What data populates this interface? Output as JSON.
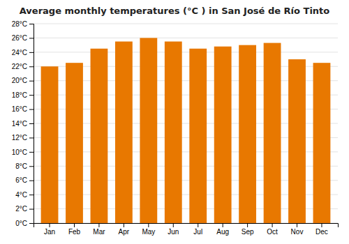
{
  "chart_data": {
    "type": "bar",
    "title": "Average monthly temperatures (°C ) in San José de Río Tinto",
    "categories": [
      "Jan",
      "Feb",
      "Mar",
      "Apr",
      "May",
      "Jun",
      "Jul",
      "Aug",
      "Sep",
      "Oct",
      "Nov",
      "Dec"
    ],
    "values": [
      22.0,
      22.5,
      24.5,
      25.5,
      26.0,
      25.5,
      24.5,
      24.8,
      25.0,
      25.3,
      23.0,
      22.5
    ],
    "color": "#E87800",
    "ylim": [
      0,
      28
    ],
    "yticks": [
      {
        "value": 0,
        "label": "0°C"
      },
      {
        "value": 2,
        "label": "2°C"
      },
      {
        "value": 4,
        "label": "4°C"
      },
      {
        "value": 6,
        "label": "6°C"
      },
      {
        "value": 8,
        "label": "8°C"
      },
      {
        "value": 10,
        "label": "10°C"
      },
      {
        "value": 12,
        "label": "12°C"
      },
      {
        "value": 14,
        "label": "14°C"
      },
      {
        "value": 16,
        "label": "16°C"
      },
      {
        "value": 18,
        "label": "18°C"
      },
      {
        "value": 20,
        "label": "20°C"
      },
      {
        "value": 22,
        "label": "22°C"
      },
      {
        "value": 24,
        "label": "24°C"
      },
      {
        "value": 26,
        "label": "26°C"
      },
      {
        "value": 28,
        "label": "28°C"
      }
    ],
    "grid": true
  }
}
